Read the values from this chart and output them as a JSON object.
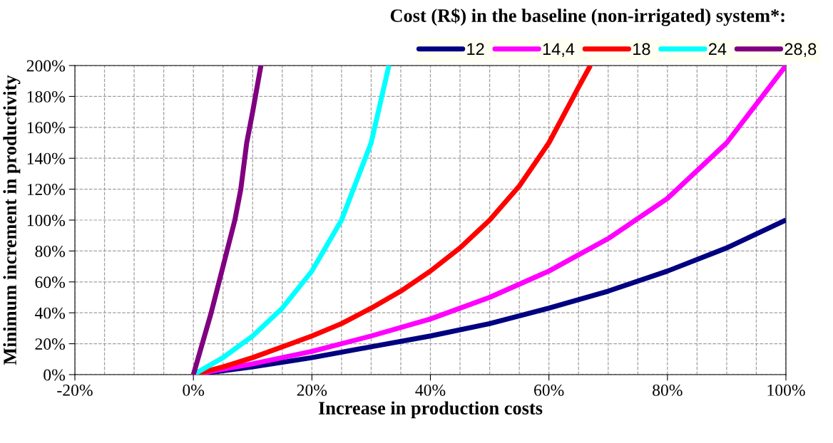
{
  "chart_data": {
    "type": "line",
    "xlabel": "Increase in production costs",
    "ylabel": "Minimum increment in productivity",
    "legend_title": "Cost (R$) in the baseline (non-irrigated) system*:",
    "legend": "top right",
    "grid": true,
    "line_style": "solid",
    "xlim": [
      -20,
      100
    ],
    "ylim": [
      0,
      200
    ],
    "xticks": [
      {
        "value": -20,
        "label": "-20%"
      },
      {
        "value": -15,
        "label": null
      },
      {
        "value": -10,
        "label": null
      },
      {
        "value": -5,
        "label": null
      },
      {
        "value": 0,
        "label": "0%"
      },
      {
        "value": 5,
        "label": null
      },
      {
        "value": 10,
        "label": null
      },
      {
        "value": 15,
        "label": null
      },
      {
        "value": 20,
        "label": "20%"
      },
      {
        "value": 25,
        "label": null
      },
      {
        "value": 30,
        "label": null
      },
      {
        "value": 35,
        "label": null
      },
      {
        "value": 40,
        "label": "40%"
      },
      {
        "value": 45,
        "label": null
      },
      {
        "value": 50,
        "label": null
      },
      {
        "value": 55,
        "label": null
      },
      {
        "value": 60,
        "label": "60%"
      },
      {
        "value": 65,
        "label": null
      },
      {
        "value": 70,
        "label": null
      },
      {
        "value": 75,
        "label": null
      },
      {
        "value": 80,
        "label": "80%"
      },
      {
        "value": 85,
        "label": null
      },
      {
        "value": 90,
        "label": null
      },
      {
        "value": 95,
        "label": null
      },
      {
        "value": 100,
        "label": "100%"
      }
    ],
    "yticks": [
      {
        "value": 0,
        "label": "0%"
      },
      {
        "value": 20,
        "label": "20%"
      },
      {
        "value": 40,
        "label": "40%"
      },
      {
        "value": 60,
        "label": "60%"
      },
      {
        "value": 80,
        "label": "80%"
      },
      {
        "value": 100,
        "label": "100%"
      },
      {
        "value": 120,
        "label": "120%"
      },
      {
        "value": 140,
        "label": "140%"
      },
      {
        "value": 160,
        "label": "160%"
      },
      {
        "value": 180,
        "label": "180%"
      },
      {
        "value": 200,
        "label": "200%"
      }
    ],
    "series": [
      {
        "name": "12",
        "color": "#000080",
        "x": [
          0,
          10,
          20,
          30,
          40,
          50,
          60,
          70,
          80,
          90,
          100
        ],
        "values": [
          0,
          5,
          11,
          18,
          25,
          33,
          43,
          54,
          67,
          82,
          100
        ]
      },
      {
        "name": "14,4",
        "color": "#ff00ff",
        "x": [
          0,
          10,
          20,
          30,
          40,
          50,
          60,
          70,
          80,
          90,
          100
        ],
        "values": [
          0,
          7,
          15,
          25,
          36,
          50,
          67,
          88,
          114,
          150,
          200
        ]
      },
      {
        "name": "18",
        "color": "#ff0000",
        "x": [
          0,
          5,
          10,
          15,
          20,
          25,
          30,
          35,
          40,
          45,
          50,
          55,
          60,
          65,
          67
        ],
        "values": [
          0,
          5,
          11,
          18,
          25,
          33,
          43,
          54,
          67,
          82,
          100,
          122,
          150,
          186,
          200
        ]
      },
      {
        "name": "24",
        "color": "#00ffff",
        "x": [
          0,
          5,
          10,
          15,
          20,
          25,
          30,
          33
        ],
        "values": [
          0,
          11,
          25,
          43,
          67,
          100,
          150,
          200
        ]
      },
      {
        "name": "28,8",
        "color": "#800080",
        "x": [
          0,
          3,
          5,
          7,
          8,
          9,
          10,
          11.4
        ],
        "values": [
          0,
          40,
          70,
          100,
          120,
          150,
          170,
          200
        ]
      }
    ]
  }
}
